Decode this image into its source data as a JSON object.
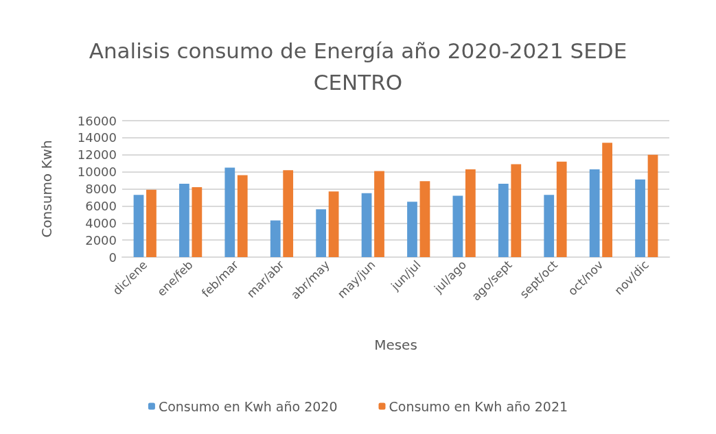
{
  "chart_data": {
    "type": "bar",
    "title": "Analisis consumo de Energía año 2020-2021 SEDE\nCENTRO",
    "xlabel": "Meses",
    "ylabel": "Consumo Kwh",
    "categories": [
      "dic/ene",
      "ene/feb",
      "feb/mar",
      "mar/abr",
      "abr/may",
      "may/jun",
      "jun/jul",
      "jul/ago",
      "ago/sept",
      "sept/oct",
      "oct/nov",
      "nov/dic"
    ],
    "series": [
      {
        "name": "Consumo en Kwh año 2020",
        "color": "#5b9bd5",
        "values": [
          7300,
          8600,
          10500,
          4300,
          5600,
          7500,
          6500,
          7200,
          8600,
          7300,
          10300,
          9100
        ]
      },
      {
        "name": "Consumo en Kwh año 2021",
        "color": "#ed7d31",
        "values": [
          7900,
          8200,
          9600,
          10200,
          7700,
          10100,
          8900,
          10300,
          10900,
          11200,
          13400,
          12000
        ]
      }
    ],
    "ylim": [
      0,
      16000
    ],
    "yticks": [
      0,
      2000,
      4000,
      6000,
      8000,
      10000,
      12000,
      14000,
      16000
    ],
    "grid": "y",
    "legend": "bottom"
  }
}
